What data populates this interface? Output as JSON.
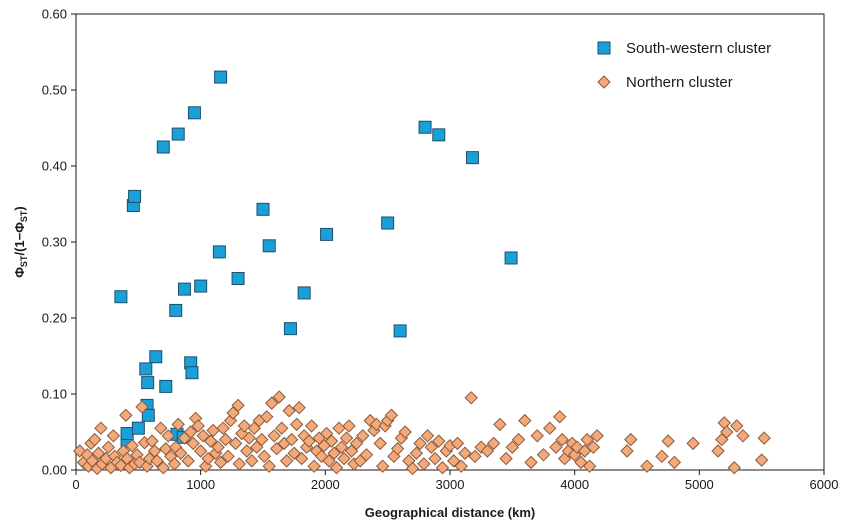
{
  "chart_data": {
    "type": "scatter",
    "xlabel": "Geographical distance (km)",
    "ylabel": "ΦST/(1−ΦST)",
    "ylabel_parts": {
      "phi1": "Φ",
      "sub1": "ST",
      "mid": "/(1−",
      "phi2": "Φ",
      "sub2": "ST",
      "end": ")"
    },
    "xlim": [
      0,
      6000
    ],
    "ylim": [
      0,
      0.6
    ],
    "xticks": [
      "0",
      "1000",
      "2000",
      "3000",
      "4000",
      "5000",
      "6000"
    ],
    "yticks": [
      "0.00",
      "0.10",
      "0.20",
      "0.30",
      "0.40",
      "0.50",
      "0.60"
    ],
    "grid": false,
    "legend_position": "top-right",
    "series": [
      {
        "name": "South-western cluster",
        "marker": "square",
        "color": "#1aa0d8",
        "points": [
          [
            360,
            0.228
          ],
          [
            410,
            0.038
          ],
          [
            410,
            0.048
          ],
          [
            460,
            0.348
          ],
          [
            470,
            0.36
          ],
          [
            500,
            0.055
          ],
          [
            560,
            0.133
          ],
          [
            570,
            0.085
          ],
          [
            575,
            0.115
          ],
          [
            580,
            0.072
          ],
          [
            640,
            0.149
          ],
          [
            700,
            0.425
          ],
          [
            720,
            0.11
          ],
          [
            800,
            0.21
          ],
          [
            810,
            0.047
          ],
          [
            820,
            0.442
          ],
          [
            860,
            0.043
          ],
          [
            870,
            0.238
          ],
          [
            920,
            0.141
          ],
          [
            930,
            0.128
          ],
          [
            950,
            0.47
          ],
          [
            1000,
            0.242
          ],
          [
            1150,
            0.287
          ],
          [
            1160,
            0.517
          ],
          [
            1300,
            0.252
          ],
          [
            1500,
            0.343
          ],
          [
            1550,
            0.295
          ],
          [
            1720,
            0.186
          ],
          [
            1830,
            0.233
          ],
          [
            2010,
            0.31
          ],
          [
            2500,
            0.325
          ],
          [
            2600,
            0.183
          ],
          [
            2800,
            0.451
          ],
          [
            2910,
            0.441
          ],
          [
            3180,
            0.411
          ],
          [
            3490,
            0.279
          ]
        ]
      },
      {
        "name": "Northern cluster",
        "marker": "diamond",
        "color": "#f4a97b",
        "points": [
          [
            30,
            0.025
          ],
          [
            60,
            0.01
          ],
          [
            90,
            0.02
          ],
          [
            100,
            0.005
          ],
          [
            120,
            0.035
          ],
          [
            130,
            0.012
          ],
          [
            150,
            0.04
          ],
          [
            170,
            0.002
          ],
          [
            180,
            0.022
          ],
          [
            200,
            0.055
          ],
          [
            210,
            0.008
          ],
          [
            240,
            0.015
          ],
          [
            260,
            0.03
          ],
          [
            280,
            0.003
          ],
          [
            300,
            0.045
          ],
          [
            310,
            0.018
          ],
          [
            330,
            0.01
          ],
          [
            360,
            0.006
          ],
          [
            380,
            0.025
          ],
          [
            400,
            0.072
          ],
          [
            410,
            0.015
          ],
          [
            430,
            0.003
          ],
          [
            450,
            0.032
          ],
          [
            470,
            0.008
          ],
          [
            490,
            0.02
          ],
          [
            510,
            0.01
          ],
          [
            530,
            0.083
          ],
          [
            550,
            0.036
          ],
          [
            570,
            0.005
          ],
          [
            590,
            0.015
          ],
          [
            610,
            0.038
          ],
          [
            630,
            0.025
          ],
          [
            650,
            0.012
          ],
          [
            680,
            0.055
          ],
          [
            700,
            0.003
          ],
          [
            720,
            0.028
          ],
          [
            740,
            0.045
          ],
          [
            760,
            0.018
          ],
          [
            790,
            0.008
          ],
          [
            800,
            0.03
          ],
          [
            820,
            0.06
          ],
          [
            840,
            0.022
          ],
          [
            870,
            0.042
          ],
          [
            900,
            0.012
          ],
          [
            920,
            0.05
          ],
          [
            940,
            0.035
          ],
          [
            960,
            0.068
          ],
          [
            980,
            0.058
          ],
          [
            1000,
            0.025
          ],
          [
            1020,
            0.045
          ],
          [
            1040,
            0.005
          ],
          [
            1060,
            0.015
          ],
          [
            1080,
            0.038
          ],
          [
            1100,
            0.052
          ],
          [
            1120,
            0.022
          ],
          [
            1140,
            0.03
          ],
          [
            1160,
            0.01
          ],
          [
            1180,
            0.055
          ],
          [
            1200,
            0.04
          ],
          [
            1220,
            0.018
          ],
          [
            1240,
            0.065
          ],
          [
            1260,
            0.075
          ],
          [
            1280,
            0.035
          ],
          [
            1300,
            0.085
          ],
          [
            1310,
            0.008
          ],
          [
            1330,
            0.048
          ],
          [
            1350,
            0.058
          ],
          [
            1370,
            0.025
          ],
          [
            1390,
            0.042
          ],
          [
            1410,
            0.012
          ],
          [
            1430,
            0.055
          ],
          [
            1450,
            0.03
          ],
          [
            1470,
            0.065
          ],
          [
            1490,
            0.04
          ],
          [
            1510,
            0.018
          ],
          [
            1530,
            0.07
          ],
          [
            1550,
            0.005
          ],
          [
            1570,
            0.088
          ],
          [
            1590,
            0.045
          ],
          [
            1610,
            0.028
          ],
          [
            1630,
            0.096
          ],
          [
            1650,
            0.055
          ],
          [
            1670,
            0.035
          ],
          [
            1690,
            0.012
          ],
          [
            1710,
            0.078
          ],
          [
            1730,
            0.04
          ],
          [
            1750,
            0.022
          ],
          [
            1770,
            0.06
          ],
          [
            1790,
            0.082
          ],
          [
            1810,
            0.015
          ],
          [
            1830,
            0.045
          ],
          [
            1850,
            0.03
          ],
          [
            1870,
            0.038
          ],
          [
            1890,
            0.058
          ],
          [
            1910,
            0.005
          ],
          [
            1930,
            0.025
          ],
          [
            1950,
            0.042
          ],
          [
            1970,
            0.018
          ],
          [
            1990,
            0.032
          ],
          [
            2010,
            0.048
          ],
          [
            2030,
            0.012
          ],
          [
            2050,
            0.038
          ],
          [
            2070,
            0.022
          ],
          [
            2090,
            0.003
          ],
          [
            2110,
            0.055
          ],
          [
            2130,
            0.03
          ],
          [
            2150,
            0.015
          ],
          [
            2170,
            0.042
          ],
          [
            2190,
            0.058
          ],
          [
            2210,
            0.025
          ],
          [
            2230,
            0.008
          ],
          [
            2250,
            0.035
          ],
          [
            2280,
            0.012
          ],
          [
            2300,
            0.045
          ],
          [
            2330,
            0.02
          ],
          [
            2360,
            0.065
          ],
          [
            2390,
            0.052
          ],
          [
            2410,
            0.06
          ],
          [
            2440,
            0.035
          ],
          [
            2460,
            0.005
          ],
          [
            2480,
            0.058
          ],
          [
            2500,
            0.065
          ],
          [
            2530,
            0.072
          ],
          [
            2550,
            0.018
          ],
          [
            2580,
            0.028
          ],
          [
            2610,
            0.042
          ],
          [
            2640,
            0.05
          ],
          [
            2670,
            0.012
          ],
          [
            2700,
            0.002
          ],
          [
            2730,
            0.022
          ],
          [
            2760,
            0.035
          ],
          [
            2790,
            0.008
          ],
          [
            2820,
            0.045
          ],
          [
            2850,
            0.03
          ],
          [
            2880,
            0.015
          ],
          [
            2910,
            0.038
          ],
          [
            2940,
            0.003
          ],
          [
            2970,
            0.025
          ],
          [
            3000,
            0.032
          ],
          [
            3030,
            0.012
          ],
          [
            3060,
            0.035
          ],
          [
            3090,
            0.005
          ],
          [
            3120,
            0.022
          ],
          [
            3170,
            0.095
          ],
          [
            3200,
            0.018
          ],
          [
            3250,
            0.03
          ],
          [
            3300,
            0.025
          ],
          [
            3350,
            0.035
          ],
          [
            3400,
            0.06
          ],
          [
            3450,
            0.015
          ],
          [
            3500,
            0.03
          ],
          [
            3550,
            0.04
          ],
          [
            3600,
            0.065
          ],
          [
            3650,
            0.01
          ],
          [
            3700,
            0.045
          ],
          [
            3750,
            0.02
          ],
          [
            3800,
            0.055
          ],
          [
            3850,
            0.03
          ],
          [
            3880,
            0.07
          ],
          [
            3900,
            0.04
          ],
          [
            3920,
            0.015
          ],
          [
            3950,
            0.025
          ],
          [
            3980,
            0.035
          ],
          [
            4000,
            0.02
          ],
          [
            4020,
            0.03
          ],
          [
            4050,
            0.01
          ],
          [
            4080,
            0.025
          ],
          [
            4100,
            0.04
          ],
          [
            4120,
            0.005
          ],
          [
            4150,
            0.03
          ],
          [
            4180,
            0.045
          ],
          [
            4420,
            0.025
          ],
          [
            4450,
            0.04
          ],
          [
            4580,
            0.005
          ],
          [
            4700,
            0.018
          ],
          [
            4750,
            0.038
          ],
          [
            4800,
            0.01
          ],
          [
            4950,
            0.035
          ],
          [
            5150,
            0.025
          ],
          [
            5180,
            0.04
          ],
          [
            5200,
            0.062
          ],
          [
            5220,
            0.05
          ],
          [
            5280,
            0.003
          ],
          [
            5300,
            0.058
          ],
          [
            5350,
            0.045
          ],
          [
            5500,
            0.013
          ],
          [
            5520,
            0.042
          ]
        ]
      }
    ]
  }
}
